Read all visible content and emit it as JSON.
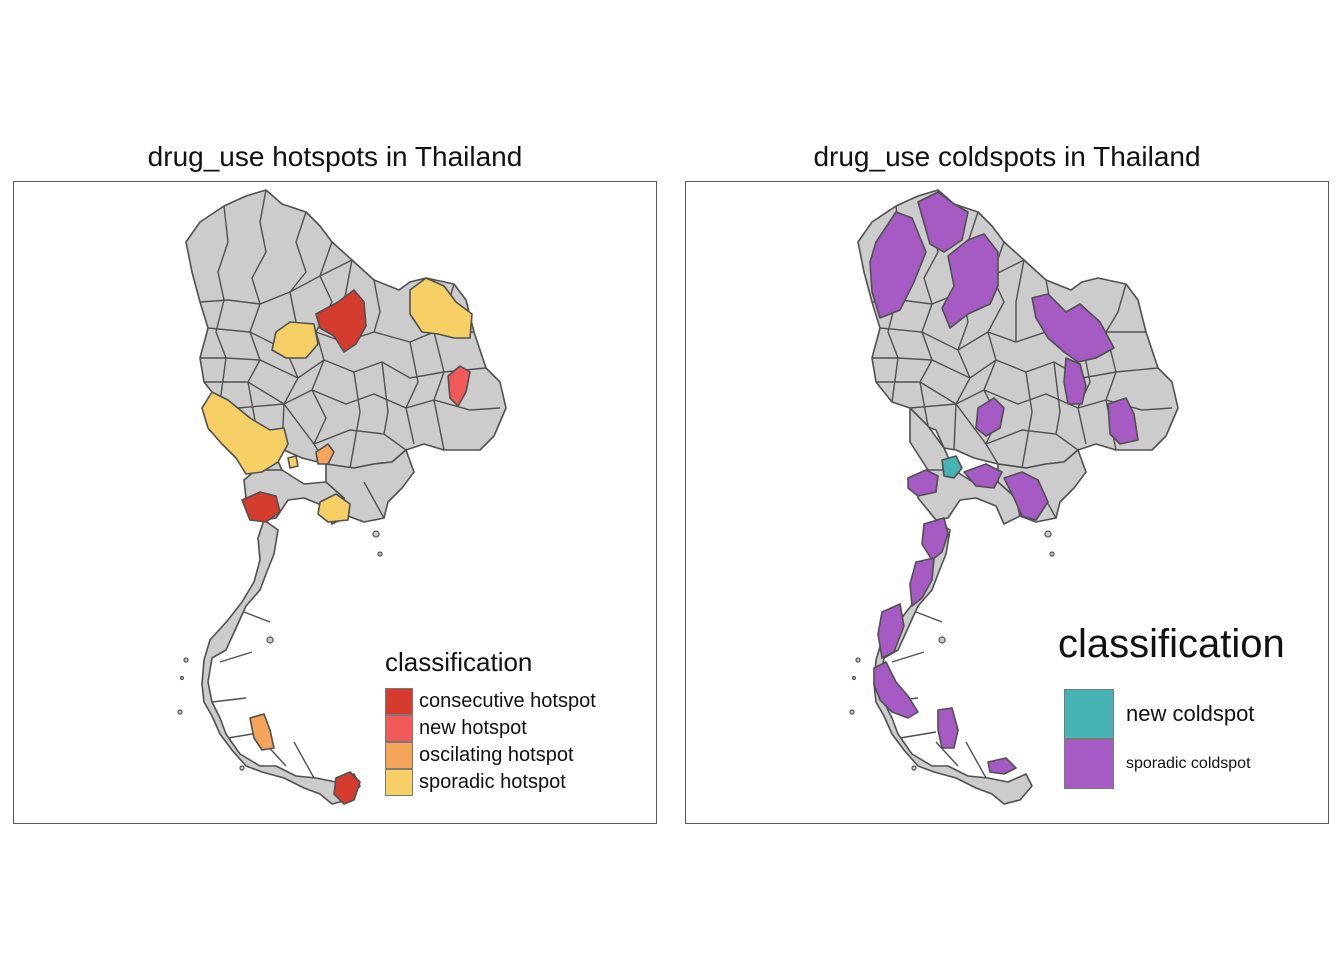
{
  "map_data": {
    "left": {
      "title": "drug_use hotspots in Thailand",
      "base_color": "#cccccc",
      "legend_title": "classification",
      "legend": [
        {
          "label": "consecutive hotspot",
          "color": "#d63c2e"
        },
        {
          "label": "new hotspot",
          "color": "#f25a5a"
        },
        {
          "label": "oscilating hotspot",
          "color": "#f4a55a"
        },
        {
          "label": "sporadic hotspot",
          "color": "#f6d065"
        }
      ]
    },
    "right": {
      "title": "drug_use coldspots in Thailand",
      "base_color": "#cccccc",
      "legend_title": "classification",
      "legend": [
        {
          "label": "new coldspot",
          "color": "#48b3b5"
        },
        {
          "label": "sporadic coldspot",
          "color": "#a65ac4"
        }
      ]
    }
  }
}
